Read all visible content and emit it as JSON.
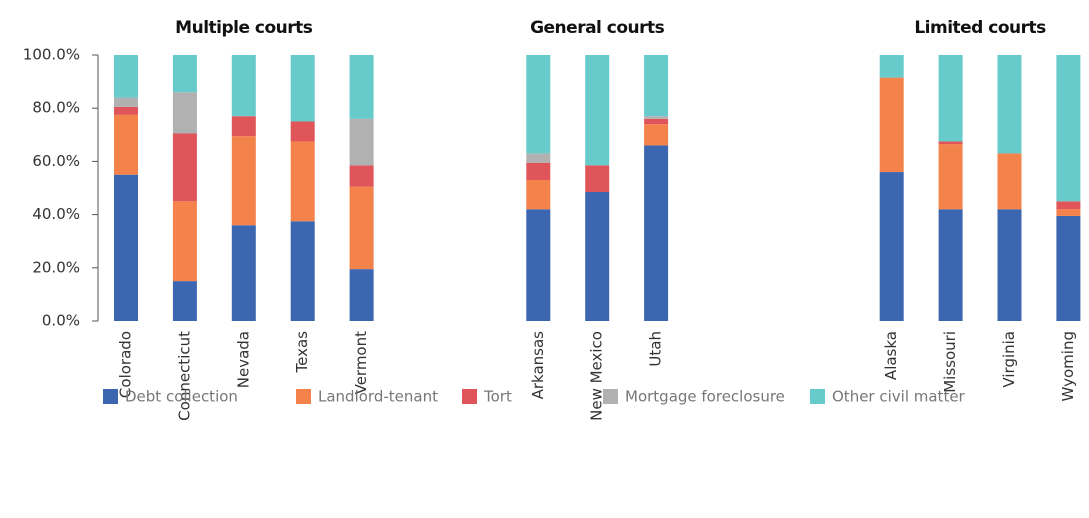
{
  "chart_data": {
    "type": "stacked_bar",
    "groups": [
      {
        "label": "Multiple courts"
      },
      {
        "label": "General courts"
      },
      {
        "label": "Limited courts"
      }
    ],
    "categories": [
      "Colorado",
      "Connecticut",
      "Nevada",
      "Texas",
      "Vermont",
      null,
      null,
      "Arkansas",
      "New Mexico",
      "Utah",
      null,
      null,
      null,
      "Alaska",
      "Missouri",
      "Virginia",
      "Wyoming"
    ],
    "series": [
      {
        "name": "Debt collection",
        "color": "#3d66b0",
        "values": [
          55,
          15,
          36,
          37.5,
          19.5,
          null,
          null,
          42,
          48.5,
          66,
          null,
          null,
          null,
          56,
          42,
          42,
          39.5
        ]
      },
      {
        "name": "Landlord-tenant",
        "color": "#f4824b",
        "values": [
          22.5,
          30,
          33.5,
          30,
          31,
          null,
          null,
          11,
          0,
          8,
          null,
          null,
          null,
          35.5,
          24.5,
          21,
          2.5
        ]
      },
      {
        "name": "Tort",
        "color": "#e0555a",
        "values": [
          3,
          25.5,
          7.5,
          7.5,
          8,
          null,
          null,
          6.5,
          10,
          2,
          null,
          null,
          null,
          0,
          1,
          0,
          3
        ]
      },
      {
        "name": "Mortgage foreclosure",
        "color": "#b1b1b1",
        "values": [
          3.5,
          15.5,
          0,
          0,
          17.5,
          null,
          null,
          3.5,
          0,
          1,
          null,
          null,
          null,
          0,
          0,
          0,
          0
        ]
      },
      {
        "name": "Other civil matter",
        "color": "#67cbcb",
        "values": [
          16,
          14,
          23,
          25,
          24,
          null,
          null,
          37,
          41.5,
          23,
          null,
          null,
          null,
          8.5,
          32.5,
          37,
          55
        ]
      }
    ],
    "ylim": [
      0,
      100
    ],
    "yticks": [
      {
        "value": 0,
        "label": "0.0%"
      },
      {
        "value": 20,
        "label": "20.0%"
      },
      {
        "value": 40,
        "label": "40.0%"
      },
      {
        "value": 60,
        "label": "60.0%"
      },
      {
        "value": 80,
        "label": "80.0%"
      },
      {
        "value": 100,
        "label": "100.0%"
      }
    ],
    "legend": "bottom"
  }
}
